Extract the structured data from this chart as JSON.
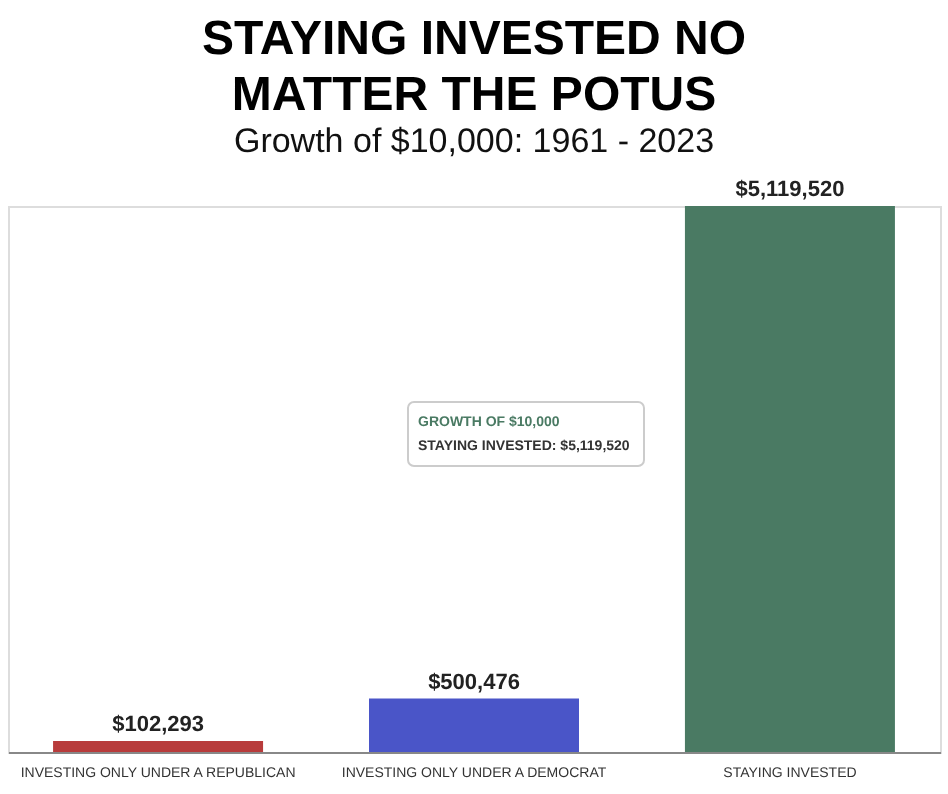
{
  "chart_data": {
    "type": "bar",
    "title": "STAYING INVESTED NO MATTER THE POTUS",
    "subtitle": "Growth of $10,000:  1961 - 2023",
    "categories": [
      "INVESTING ONLY UNDER A REPUBLICAN",
      "INVESTING ONLY UNDER A DEMOCRAT",
      "STAYING INVESTED"
    ],
    "values": [
      102293,
      500476,
      5119520
    ],
    "colors": [
      "#b83b3b",
      "#4a55c8",
      "#4a7a63"
    ],
    "value_labels": [
      "$102,293",
      "$500,476",
      "$5,119,520"
    ],
    "annotations": [
      "GROWTH OF $10,000",
      "STAYING INVESTED: $5,119,520"
    ]
  }
}
